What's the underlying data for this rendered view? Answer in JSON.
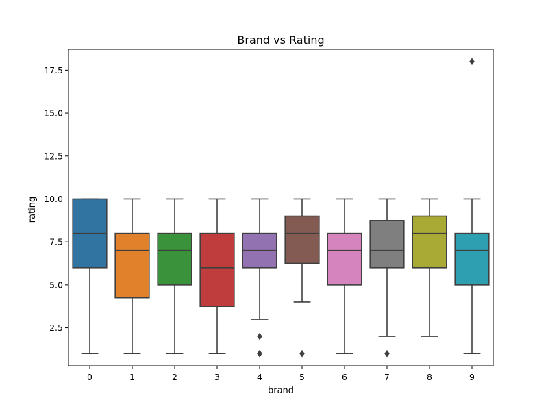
{
  "chart_data": {
    "type": "box",
    "title": "Brand vs Rating",
    "xlabel": "brand",
    "ylabel": "rating",
    "ylim": [
      0.29,
      18.71
    ],
    "yticks": [
      2.5,
      5.0,
      7.5,
      10.0,
      12.5,
      15.0,
      17.5
    ],
    "ytick_labels": [
      "2.5",
      "5.0",
      "7.5",
      "10.0",
      "12.5",
      "15.0",
      "17.5"
    ],
    "grid": false,
    "categories": [
      "0",
      "1",
      "2",
      "3",
      "4",
      "5",
      "6",
      "7",
      "8",
      "9"
    ],
    "boxes": [
      {
        "category": "0",
        "color": "#3274a1",
        "whisker_low": 1,
        "q1": 6,
        "median": 8,
        "q3": 10,
        "whisker_high": 10,
        "outliers": []
      },
      {
        "category": "1",
        "color": "#e1812c",
        "whisker_low": 1,
        "q1": 4.25,
        "median": 7,
        "q3": 8,
        "whisker_high": 10,
        "outliers": []
      },
      {
        "category": "2",
        "color": "#3a923a",
        "whisker_low": 1,
        "q1": 5,
        "median": 7,
        "q3": 8,
        "whisker_high": 10,
        "outliers": []
      },
      {
        "category": "3",
        "color": "#c03d3e",
        "whisker_low": 1,
        "q1": 3.75,
        "median": 6,
        "q3": 8,
        "whisker_high": 10,
        "outliers": []
      },
      {
        "category": "4",
        "color": "#9372b2",
        "whisker_low": 3,
        "q1": 6,
        "median": 7,
        "q3": 8,
        "whisker_high": 10,
        "outliers": [
          2,
          1,
          1
        ]
      },
      {
        "category": "5",
        "color": "#845b53",
        "whisker_low": 4,
        "q1": 6.25,
        "median": 8,
        "q3": 9,
        "whisker_high": 10,
        "outliers": [
          1
        ]
      },
      {
        "category": "6",
        "color": "#d684bd",
        "whisker_low": 1,
        "q1": 5,
        "median": 7,
        "q3": 8,
        "whisker_high": 10,
        "outliers": []
      },
      {
        "category": "7",
        "color": "#7f7f7f",
        "whisker_low": 2,
        "q1": 6,
        "median": 7,
        "q3": 8.75,
        "whisker_high": 10,
        "outliers": [
          1
        ]
      },
      {
        "category": "8",
        "color": "#a9aa35",
        "whisker_low": 2,
        "q1": 6,
        "median": 8,
        "q3": 9,
        "whisker_high": 10,
        "outliers": []
      },
      {
        "category": "9",
        "color": "#2d9fb0",
        "whisker_low": 1,
        "q1": 5,
        "median": 7,
        "q3": 8,
        "whisker_high": 10,
        "outliers": [
          18
        ]
      }
    ]
  }
}
